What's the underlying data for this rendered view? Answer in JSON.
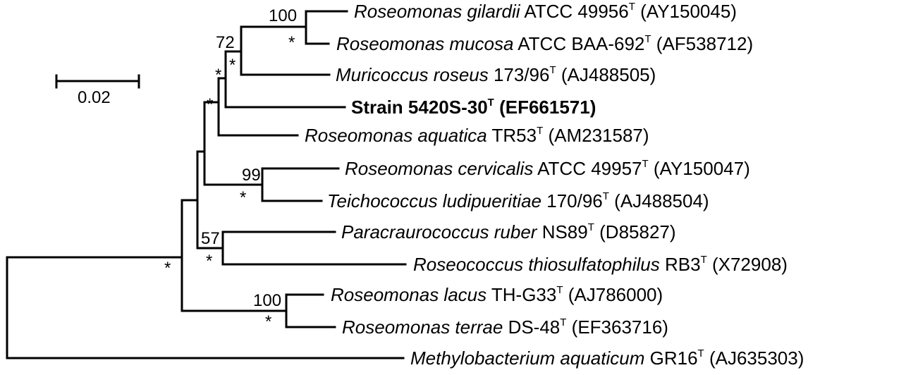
{
  "scale_bar": {
    "label": "0.02"
  },
  "taxa": [
    {
      "id": "gilardii",
      "genus": "Roseomonas gilardii",
      "strain": " ATCC 49956",
      "sup": "T",
      "acc": " (AY150045)",
      "bold": false
    },
    {
      "id": "mucosa",
      "genus": "Roseomonas mucosa",
      "strain": " ATCC BAA-692",
      "sup": "T",
      "acc": " (AF538712)",
      "bold": false
    },
    {
      "id": "muricoccus",
      "genus": "Muricoccus roseus",
      "strain": " 173/96",
      "sup": "T",
      "acc": " (AJ488505)",
      "bold": false
    },
    {
      "id": "strain",
      "genus": "",
      "strain": "Strain 5420S-30",
      "sup": "T",
      "acc": " (EF661571)",
      "bold": true
    },
    {
      "id": "aquatica",
      "genus": "Roseomonas aquatica",
      "strain": " TR53",
      "sup": "T",
      "acc": " (AM231587)",
      "bold": false
    },
    {
      "id": "cervicalis",
      "genus": "Roseomonas cervicalis",
      "strain": " ATCC 49957",
      "sup": "T",
      "acc": " (AY150047)",
      "bold": false
    },
    {
      "id": "teicho",
      "genus": "Teichococcus ludipueritiae",
      "strain": " 170/96",
      "sup": "T",
      "acc": " (AJ488504)",
      "bold": false
    },
    {
      "id": "paracr",
      "genus": "Paracraurococcus ruber",
      "strain": " NS89",
      "sup": "T",
      "acc": " (D85827)",
      "bold": false
    },
    {
      "id": "roseococcus",
      "genus": "Roseococcus thiosulfatophilus",
      "strain": " RB3",
      "sup": "T",
      "acc": " (X72908)",
      "bold": false
    },
    {
      "id": "lacus",
      "genus": "Roseomonas lacus",
      "strain": " TH-G33",
      "sup": "T",
      "acc": " (AJ786000)",
      "bold": false
    },
    {
      "id": "terrae",
      "genus": "Roseomonas terrae",
      "strain": " DS-48",
      "sup": "T",
      "acc": " (EF363716)",
      "bold": false
    },
    {
      "id": "methylo",
      "genus": "Methylobacterium aquaticum",
      "strain": " GR16",
      "sup": "T",
      "acc": " (AJ635303)",
      "bold": false
    }
  ],
  "supports": {
    "gilardii_mucosa_pct": "100",
    "gilardii_mucosa_star": "*",
    "mur_clade_pct": "72",
    "mur_clade_star": "*",
    "strain_clade_star": "*",
    "aquatica_clade_star": "*",
    "cerv_teicho_pct": "99",
    "cerv_teicho_star": "*",
    "para_rosc_pct": "57",
    "para_rosc_star": "*",
    "root_inner_star": "*",
    "lacus_terrae_pct": "100",
    "lacus_terrae_star": "*"
  }
}
